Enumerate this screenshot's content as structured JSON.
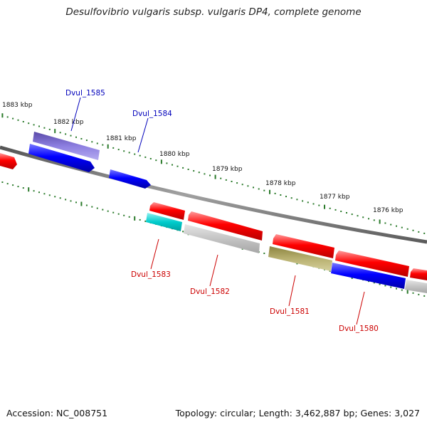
{
  "title": "Desulfovibrio vulgaris subsp. vulgaris DP4, complete genome",
  "footer": {
    "accession": "Accession: NC_008751",
    "stats": "Topology: circular; Length: 3,462,887 bp; Genes: 3,027"
  },
  "scale_labels": [
    "1883 kbp",
    "1882 kbp",
    "1881 kbp",
    "1880 kbp",
    "1879 kbp",
    "1878 kbp",
    "1877 kbp",
    "1876 kbp"
  ],
  "gene_labels": {
    "top": [
      "Dvul_1585",
      "Dvul_1584"
    ],
    "bottom": [
      "Dvul_1583",
      "Dvul_1582",
      "Dvul_1581",
      "Dvul_1580"
    ]
  },
  "colors": {
    "forward_label": "#0000bb",
    "reverse_label": "#cc0000",
    "backbone": "#808080",
    "tick": "#2a7a2a",
    "red": "#ff0000",
    "blue": "#0000ff",
    "purple": "#7060d0",
    "cyan": "#00cccc",
    "olive": "#b0a860",
    "gray": "#bdbdbd"
  }
}
